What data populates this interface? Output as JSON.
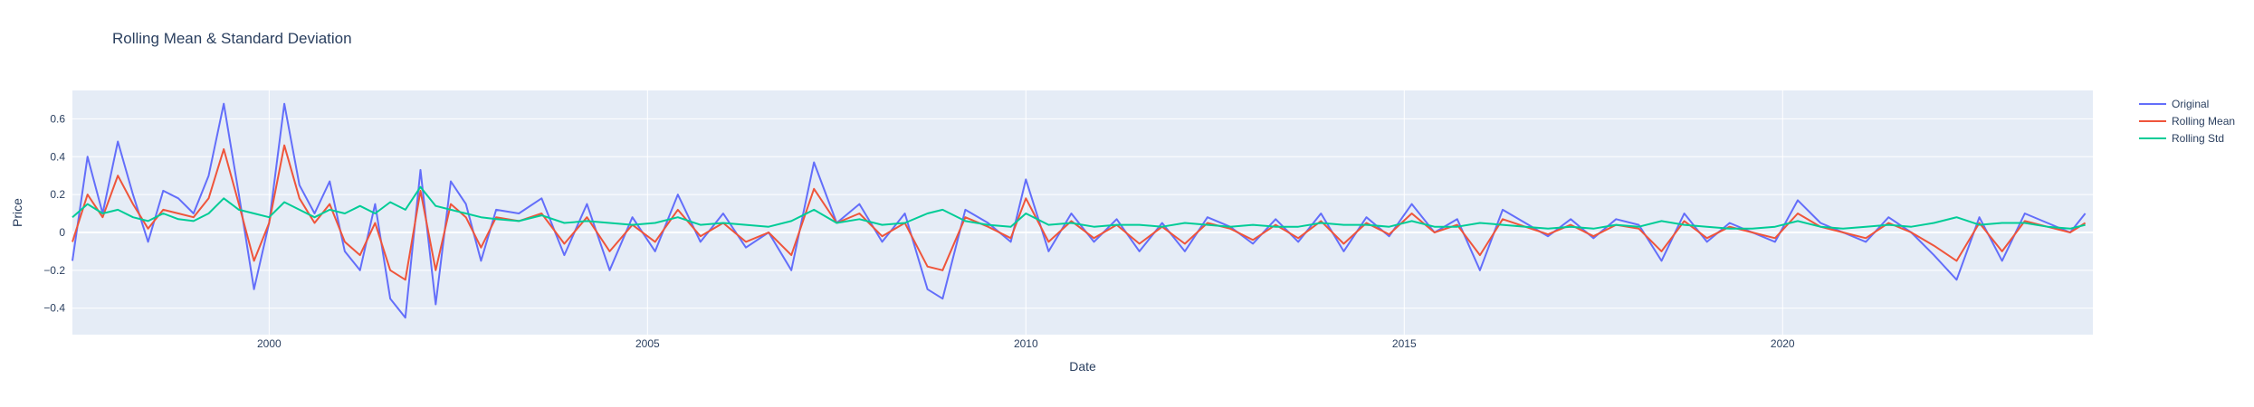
{
  "chart_data": {
    "type": "line",
    "title": "Rolling Mean & Standard Deviation",
    "xlabel": "Date",
    "ylabel": "Price",
    "xlim": [
      1997.4,
      2024.1
    ],
    "ylim": [
      -0.54,
      0.75
    ],
    "x_ticks": [
      2000,
      2005,
      2010,
      2015,
      2020
    ],
    "x_tick_labels": [
      "2000",
      "2005",
      "2010",
      "2015",
      "2020"
    ],
    "y_ticks": [
      -0.4,
      -0.2,
      0,
      0.2,
      0.4,
      0.6
    ],
    "y_tick_labels": [
      "−0.4",
      "−0.2",
      "0",
      "0.2",
      "0.4",
      "0.6"
    ],
    "grid": true,
    "legend_position": "top-right",
    "plot_background": "#e5ecf6",
    "series": [
      {
        "name": "Original",
        "color": "#636efa",
        "x": [
          1997.4,
          1997.6,
          1997.8,
          1998.0,
          1998.2,
          1998.4,
          1998.6,
          1998.8,
          1999.0,
          1999.2,
          1999.4,
          1999.6,
          1999.8,
          2000.0,
          2000.2,
          2000.4,
          2000.6,
          2000.8,
          2001.0,
          2001.2,
          2001.4,
          2001.6,
          2001.8,
          2002.0,
          2002.2,
          2002.4,
          2002.6,
          2002.8,
          2003.0,
          2003.3,
          2003.6,
          2003.9,
          2004.2,
          2004.5,
          2004.8,
          2005.1,
          2005.4,
          2005.7,
          2006.0,
          2006.3,
          2006.6,
          2006.9,
          2007.2,
          2007.5,
          2007.8,
          2008.1,
          2008.4,
          2008.7,
          2008.9,
          2009.2,
          2009.5,
          2009.8,
          2010.0,
          2010.3,
          2010.6,
          2010.9,
          2011.2,
          2011.5,
          2011.8,
          2012.1,
          2012.4,
          2012.7,
          2013.0,
          2013.3,
          2013.6,
          2013.9,
          2014.2,
          2014.5,
          2014.8,
          2015.1,
          2015.4,
          2015.7,
          2016.0,
          2016.3,
          2016.6,
          2016.9,
          2017.2,
          2017.5,
          2017.8,
          2018.1,
          2018.4,
          2018.7,
          2019.0,
          2019.3,
          2019.6,
          2019.9,
          2020.2,
          2020.5,
          2020.8,
          2021.1,
          2021.4,
          2021.7,
          2022.0,
          2022.3,
          2022.6,
          2022.9,
          2023.2,
          2023.5,
          2023.8,
          2024.0
        ],
        "values": [
          -0.15,
          0.4,
          0.1,
          0.48,
          0.2,
          -0.05,
          0.22,
          0.18,
          0.1,
          0.3,
          0.68,
          0.2,
          -0.3,
          0.05,
          0.68,
          0.25,
          0.1,
          0.27,
          -0.1,
          -0.2,
          0.15,
          -0.35,
          -0.45,
          0.33,
          -0.38,
          0.27,
          0.15,
          -0.15,
          0.12,
          0.1,
          0.18,
          -0.12,
          0.15,
          -0.2,
          0.08,
          -0.1,
          0.2,
          -0.05,
          0.1,
          -0.08,
          0.0,
          -0.2,
          0.37,
          0.05,
          0.15,
          -0.05,
          0.1,
          -0.3,
          -0.35,
          0.12,
          0.05,
          -0.05,
          0.28,
          -0.1,
          0.1,
          -0.05,
          0.07,
          -0.1,
          0.05,
          -0.1,
          0.08,
          0.03,
          -0.06,
          0.07,
          -0.05,
          0.1,
          -0.1,
          0.08,
          -0.02,
          0.15,
          0.0,
          0.07,
          -0.2,
          0.12,
          0.05,
          -0.02,
          0.07,
          -0.03,
          0.07,
          0.04,
          -0.15,
          0.1,
          -0.05,
          0.05,
          0.0,
          -0.05,
          0.17,
          0.05,
          0.0,
          -0.05,
          0.08,
          0.0,
          -0.12,
          -0.25,
          0.08,
          -0.15,
          0.1,
          0.05,
          0.0,
          0.1
        ]
      },
      {
        "name": "Rolling Mean",
        "color": "#ef553b",
        "x": [
          1997.4,
          1997.6,
          1997.8,
          1998.0,
          1998.2,
          1998.4,
          1998.6,
          1998.8,
          1999.0,
          1999.2,
          1999.4,
          1999.6,
          1999.8,
          2000.0,
          2000.2,
          2000.4,
          2000.6,
          2000.8,
          2001.0,
          2001.2,
          2001.4,
          2001.6,
          2001.8,
          2002.0,
          2002.2,
          2002.4,
          2002.6,
          2002.8,
          2003.0,
          2003.3,
          2003.6,
          2003.9,
          2004.2,
          2004.5,
          2004.8,
          2005.1,
          2005.4,
          2005.7,
          2006.0,
          2006.3,
          2006.6,
          2006.9,
          2007.2,
          2007.5,
          2007.8,
          2008.1,
          2008.4,
          2008.7,
          2008.9,
          2009.2,
          2009.5,
          2009.8,
          2010.0,
          2010.3,
          2010.6,
          2010.9,
          2011.2,
          2011.5,
          2011.8,
          2012.1,
          2012.4,
          2012.7,
          2013.0,
          2013.3,
          2013.6,
          2013.9,
          2014.2,
          2014.5,
          2014.8,
          2015.1,
          2015.4,
          2015.7,
          2016.0,
          2016.3,
          2016.6,
          2016.9,
          2017.2,
          2017.5,
          2017.8,
          2018.1,
          2018.4,
          2018.7,
          2019.0,
          2019.3,
          2019.6,
          2019.9,
          2020.2,
          2020.5,
          2020.8,
          2021.1,
          2021.4,
          2021.7,
          2022.0,
          2022.3,
          2022.6,
          2022.9,
          2023.2,
          2023.5,
          2023.8,
          2024.0
        ],
        "values": [
          -0.05,
          0.2,
          0.08,
          0.3,
          0.15,
          0.02,
          0.12,
          0.1,
          0.08,
          0.18,
          0.44,
          0.15,
          -0.15,
          0.05,
          0.46,
          0.18,
          0.05,
          0.15,
          -0.05,
          -0.12,
          0.05,
          -0.2,
          -0.25,
          0.22,
          -0.2,
          0.15,
          0.08,
          -0.08,
          0.08,
          0.06,
          0.1,
          -0.06,
          0.08,
          -0.1,
          0.04,
          -0.05,
          0.12,
          -0.02,
          0.05,
          -0.05,
          0.0,
          -0.12,
          0.23,
          0.05,
          0.1,
          -0.02,
          0.05,
          -0.18,
          -0.2,
          0.08,
          0.03,
          -0.03,
          0.18,
          -0.05,
          0.06,
          -0.03,
          0.04,
          -0.06,
          0.03,
          -0.06,
          0.05,
          0.02,
          -0.04,
          0.04,
          -0.03,
          0.06,
          -0.06,
          0.05,
          -0.01,
          0.1,
          0.0,
          0.04,
          -0.12,
          0.07,
          0.03,
          -0.01,
          0.04,
          -0.02,
          0.04,
          0.02,
          -0.1,
          0.06,
          -0.03,
          0.03,
          0.0,
          -0.03,
          0.1,
          0.03,
          0.0,
          -0.03,
          0.05,
          0.0,
          -0.07,
          -0.15,
          0.05,
          -0.1,
          0.06,
          0.03,
          0.0,
          0.05
        ]
      },
      {
        "name": "Rolling Std",
        "color": "#00cc96",
        "x": [
          1997.4,
          1997.6,
          1997.8,
          1998.0,
          1998.2,
          1998.4,
          1998.6,
          1998.8,
          1999.0,
          1999.2,
          1999.4,
          1999.6,
          1999.8,
          2000.0,
          2000.2,
          2000.4,
          2000.6,
          2000.8,
          2001.0,
          2001.2,
          2001.4,
          2001.6,
          2001.8,
          2002.0,
          2002.2,
          2002.4,
          2002.6,
          2002.8,
          2003.0,
          2003.3,
          2003.6,
          2003.9,
          2004.2,
          2004.5,
          2004.8,
          2005.1,
          2005.4,
          2005.7,
          2006.0,
          2006.3,
          2006.6,
          2006.9,
          2007.2,
          2007.5,
          2007.8,
          2008.1,
          2008.4,
          2008.7,
          2008.9,
          2009.2,
          2009.5,
          2009.8,
          2010.0,
          2010.3,
          2010.6,
          2010.9,
          2011.2,
          2011.5,
          2011.8,
          2012.1,
          2012.4,
          2012.7,
          2013.0,
          2013.3,
          2013.6,
          2013.9,
          2014.2,
          2014.5,
          2014.8,
          2015.1,
          2015.4,
          2015.7,
          2016.0,
          2016.3,
          2016.6,
          2016.9,
          2017.2,
          2017.5,
          2017.8,
          2018.1,
          2018.4,
          2018.7,
          2019.0,
          2019.3,
          2019.6,
          2019.9,
          2020.2,
          2020.5,
          2020.8,
          2021.1,
          2021.4,
          2021.7,
          2022.0,
          2022.3,
          2022.6,
          2022.9,
          2023.2,
          2023.5,
          2023.8,
          2024.0
        ],
        "values": [
          0.08,
          0.15,
          0.1,
          0.12,
          0.08,
          0.06,
          0.1,
          0.07,
          0.06,
          0.1,
          0.18,
          0.12,
          0.1,
          0.08,
          0.16,
          0.12,
          0.08,
          0.12,
          0.1,
          0.14,
          0.1,
          0.16,
          0.12,
          0.24,
          0.14,
          0.12,
          0.1,
          0.08,
          0.07,
          0.06,
          0.09,
          0.05,
          0.06,
          0.05,
          0.04,
          0.05,
          0.08,
          0.04,
          0.05,
          0.04,
          0.03,
          0.06,
          0.12,
          0.05,
          0.07,
          0.04,
          0.05,
          0.1,
          0.12,
          0.06,
          0.04,
          0.03,
          0.1,
          0.04,
          0.05,
          0.03,
          0.04,
          0.04,
          0.03,
          0.05,
          0.04,
          0.03,
          0.04,
          0.03,
          0.03,
          0.05,
          0.04,
          0.04,
          0.03,
          0.06,
          0.03,
          0.03,
          0.05,
          0.04,
          0.03,
          0.02,
          0.03,
          0.02,
          0.04,
          0.03,
          0.06,
          0.04,
          0.03,
          0.02,
          0.02,
          0.03,
          0.06,
          0.03,
          0.02,
          0.03,
          0.04,
          0.03,
          0.05,
          0.08,
          0.04,
          0.05,
          0.05,
          0.03,
          0.02,
          0.04
        ]
      }
    ]
  }
}
